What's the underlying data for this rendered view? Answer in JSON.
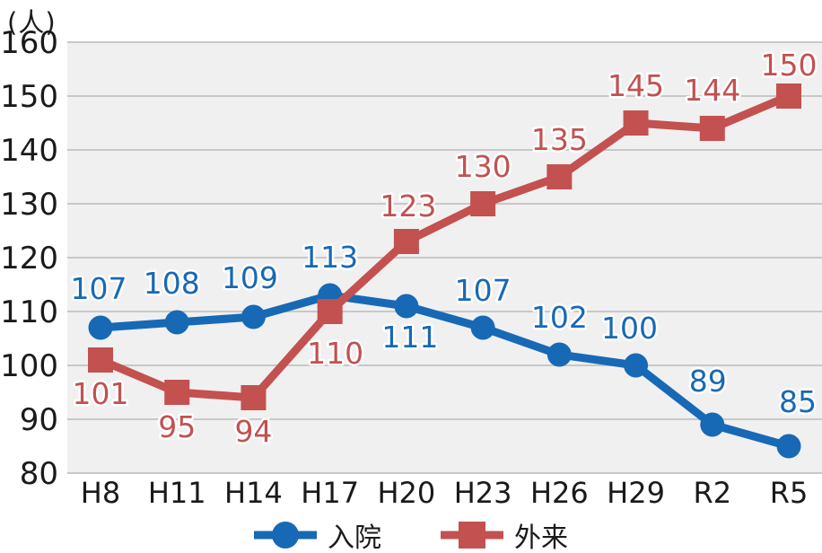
{
  "chart_data": {
    "type": "line",
    "title": "",
    "unit": "(人)",
    "categories": [
      "H8",
      "H11",
      "H14",
      "H17",
      "H20",
      "H23",
      "H26",
      "H29",
      "R2",
      "R5"
    ],
    "series": [
      {
        "id": "inpatient",
        "name": "入院",
        "color": "#1769b5",
        "marker": "circle",
        "values": [
          107,
          108,
          109,
          113,
          111,
          107,
          102,
          100,
          89,
          85
        ],
        "label_offsets": [
          [
            -2,
            -32
          ],
          [
            -6,
            -32
          ],
          [
            -4,
            -32
          ],
          [
            0,
            -31
          ],
          [
            4,
            46
          ],
          [
            0,
            -30
          ],
          [
            0,
            -30
          ],
          [
            -7,
            -30
          ],
          [
            -5,
            -37
          ],
          [
            10,
            -38
          ]
        ]
      },
      {
        "id": "outpatient",
        "name": "外来",
        "color": "#c25150",
        "marker": "square",
        "values": [
          101,
          95,
          94,
          110,
          123,
          130,
          135,
          145,
          144,
          150
        ],
        "label_offsets": [
          [
            0,
            49
          ],
          [
            0,
            50
          ],
          [
            0,
            49
          ],
          [
            6,
            58
          ],
          [
            2,
            -28
          ],
          [
            0,
            -30
          ],
          [
            0,
            -30
          ],
          [
            0,
            -30
          ],
          [
            0,
            -31
          ],
          [
            0,
            -23
          ]
        ]
      }
    ],
    "xlabel": "",
    "ylabel": "(人)",
    "ylim": [
      80,
      160
    ],
    "ytick_step": 10,
    "grid": true,
    "legend_position": "bottom",
    "colors": {
      "plot_bg": "#f0f0f0",
      "grid": "#c8c8c8",
      "text": "#1a1a1a",
      "label_halo": "#ffffff"
    }
  }
}
